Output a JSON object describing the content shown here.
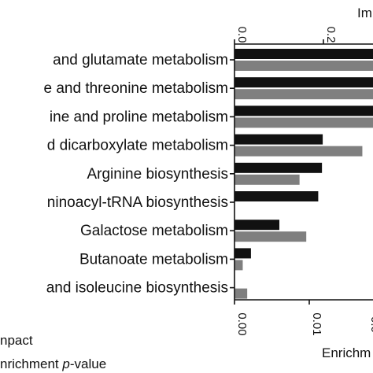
{
  "chart_data": {
    "type": "bar",
    "orientation": "horizontal",
    "categories": [
      "and glutamate metabolism",
      "e and threonine metabolism",
      "ine and proline metabolism",
      "d dicarboxylate metabolism",
      "Arginine biosynthesis",
      "ninoacyl-tRNA biosynthesis",
      "Galactose metabolism",
      "Butanoate metabolism",
      "and isoleucine biosynthesis"
    ],
    "series": [
      {
        "name": "npact",
        "color": "#111111",
        "axis": "top",
        "values": [
          0.5,
          0.5,
          0.5,
          0.0,
          0.0,
          0.0,
          0.0,
          0.0,
          0.0
        ]
      },
      {
        "name": "Enrichment p-value",
        "color": "#7f7f7f",
        "axis": "bottom",
        "values": [
          0.02,
          0.02,
          0.02,
          0.0171,
          0.0087,
          0.0,
          0.0096,
          0.0011,
          0.0017
        ]
      }
    ],
    "impact_series_bars": [
      0.5,
      0.5,
      0.5,
      0.0118,
      0.0117,
      0.0112,
      0.006,
      0.0022,
      0.0
    ],
    "top_axis": {
      "label": "Im",
      "ticks": [
        "0.0",
        "0.2"
      ],
      "tick_values": [
        0.0,
        0.2
      ],
      "range": [
        0.0,
        0.5
      ]
    },
    "bottom_axis": {
      "label": "Enrichm",
      "ticks": [
        "0.00",
        "0.01",
        "0.0"
      ],
      "tick_values": [
        0.0,
        0.01,
        0.02
      ],
      "range": [
        0.0,
        0.02
      ]
    },
    "legend": {
      "position": "bottom-left",
      "items": [
        {
          "text": "npact",
          "color": "#111111"
        },
        {
          "text_before": "nrichment ",
          "text_italic": "p",
          "text_after": "-value",
          "color": "#7f7f7f"
        }
      ]
    },
    "grid": false
  }
}
